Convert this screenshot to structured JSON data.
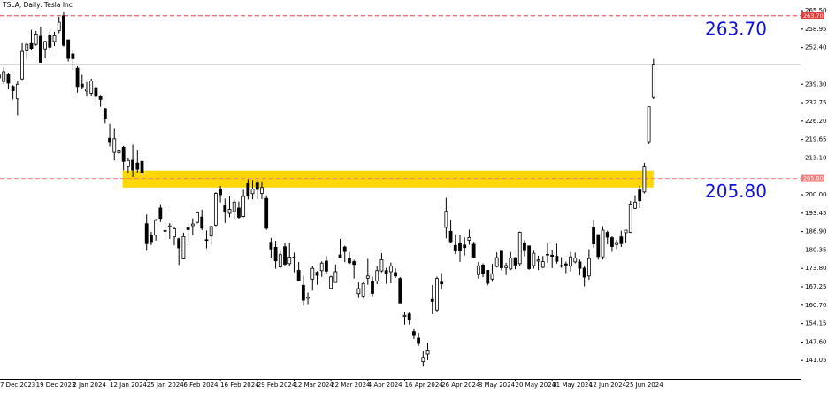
{
  "chart_data": {
    "type": "candlestick",
    "title": "TSLA, Daily:  Tesla Inc",
    "categories": [
      "7 Dec 2023",
      null,
      null,
      null,
      null,
      null,
      null,
      null,
      "19 Dec 2023",
      null,
      null,
      null,
      null,
      null,
      null,
      null,
      "2 Jan 2024",
      null,
      null,
      null,
      null,
      null,
      null,
      null,
      "12 Jan 2024",
      null,
      null,
      null,
      null,
      null,
      null,
      null,
      "25 Jan 2024",
      null,
      null,
      null,
      null,
      null,
      null,
      null,
      "6 Feb 2024",
      null,
      null,
      null,
      null,
      null,
      null,
      null,
      "16 Feb 2024",
      null,
      null,
      null,
      null,
      null,
      null,
      null,
      "29 Feb 2024",
      null,
      null,
      null,
      null,
      null,
      null,
      null,
      "12 Mar 2024",
      null,
      null,
      null,
      null,
      null,
      null,
      null,
      "22 Mar 2024",
      null,
      null,
      null,
      null,
      null,
      null,
      null,
      "4 Apr 2024",
      null,
      null,
      null,
      null,
      null,
      null,
      null,
      "16 Apr 2024",
      null,
      null,
      null,
      null,
      null,
      null,
      null,
      "26 Apr 2024",
      null,
      null,
      null,
      null,
      null,
      null,
      null,
      "8 May 2024",
      null,
      null,
      null,
      null,
      null,
      null,
      null,
      "20 May 2024",
      null,
      null,
      null,
      null,
      null,
      null,
      null,
      "31 May 2024",
      null,
      null,
      null,
      null,
      null,
      null,
      null,
      "12 Jun 2024",
      null,
      null,
      null,
      null,
      null,
      null,
      null,
      "25 Jun 2024",
      null,
      null,
      null,
      null,
      null,
      null
    ],
    "ohlc": [
      [
        241.6,
        245.6,
        240.1,
        242.6
      ],
      [
        240.3,
        245.3,
        239.4,
        243.8
      ],
      [
        242.7,
        243.4,
        237.5,
        239.7
      ],
      [
        238.5,
        239.0,
        233.9,
        237.0
      ],
      [
        234.1,
        240.3,
        228.2,
        239.3
      ],
      [
        241.2,
        253.9,
        240.8,
        251.0
      ],
      [
        251.2,
        254.1,
        248.3,
        253.5
      ],
      [
        253.8,
        258.7,
        251.4,
        252.1
      ],
      [
        253.5,
        258.3,
        253.0,
        257.2
      ],
      [
        256.4,
        259.8,
        247.0,
        247.1
      ],
      [
        251.9,
        254.8,
        248.6,
        254.5
      ],
      [
        256.8,
        258.2,
        251.4,
        252.5
      ],
      [
        254.5,
        258.0,
        252.9,
        256.6
      ],
      [
        258.4,
        263.3,
        257.5,
        261.4
      ],
      [
        263.7,
        265.1,
        252.7,
        253.2
      ],
      [
        255.1,
        255.2,
        247.4,
        248.5
      ],
      [
        250.1,
        251.3,
        244.4,
        248.4
      ],
      [
        245.0,
        245.7,
        236.3,
        238.5
      ],
      [
        239.3,
        242.7,
        237.7,
        238.4
      ],
      [
        236.9,
        240.1,
        234.9,
        237.5
      ],
      [
        236.1,
        241.3,
        235.3,
        240.5
      ],
      [
        238.1,
        239.0,
        232.0,
        235.0
      ],
      [
        235.1,
        235.5,
        231.3,
        233.9
      ],
      [
        230.6,
        230.9,
        225.4,
        227.2
      ],
      [
        220.1,
        225.3,
        217.2,
        218.9
      ],
      [
        215.1,
        223.5,
        212.2,
        219.9
      ],
      [
        214.9,
        215.7,
        212.0,
        215.6
      ],
      [
        216.9,
        217.4,
        208.7,
        211.9
      ],
      [
        210.0,
        213.2,
        207.6,
        212.2
      ],
      [
        212.3,
        217.8,
        206.3,
        208.8
      ],
      [
        211.3,
        215.7,
        207.8,
        209.1
      ],
      [
        211.9,
        212.7,
        206.8,
        207.8
      ],
      [
        189.7,
        193.0,
        180.1,
        182.6
      ],
      [
        185.5,
        186.8,
        182.1,
        183.3
      ],
      [
        185.6,
        191.5,
        183.7,
        190.9
      ],
      [
        195.3,
        196.4,
        190.3,
        191.6
      ],
      [
        187.0,
        194.0,
        185.9,
        187.3
      ],
      [
        188.5,
        189.9,
        184.3,
        188.9
      ],
      [
        185.0,
        188.7,
        182.0,
        187.9
      ],
      [
        184.3,
        184.7,
        175.0,
        181.1
      ],
      [
        177.2,
        186.5,
        177.1,
        185.1
      ],
      [
        188.2,
        189.8,
        182.7,
        187.6
      ],
      [
        189.0,
        191.6,
        185.6,
        189.6
      ],
      [
        190.2,
        194.1,
        189.8,
        193.6
      ],
      [
        192.1,
        194.7,
        187.4,
        188.1
      ],
      [
        184.0,
        187.3,
        180.9,
        184.0
      ],
      [
        185.3,
        188.9,
        182.0,
        188.7
      ],
      [
        189.2,
        200.9,
        188.8,
        200.5
      ],
      [
        202.1,
        203.2,
        197.3,
        200.0
      ],
      [
        196.1,
        198.6,
        190.0,
        193.8
      ],
      [
        193.4,
        199.4,
        192.0,
        194.8
      ],
      [
        194.0,
        198.3,
        191.4,
        197.4
      ],
      [
        195.3,
        197.6,
        191.5,
        192.0
      ],
      [
        192.3,
        201.8,
        192.0,
        199.4
      ],
      [
        204.0,
        205.6,
        198.3,
        199.7
      ],
      [
        200.4,
        205.3,
        198.4,
        202.0
      ],
      [
        204.2,
        205.3,
        198.4,
        201.9
      ],
      [
        200.5,
        204.5,
        198.5,
        202.6
      ],
      [
        198.7,
        199.8,
        187.5,
        188.1
      ],
      [
        183.1,
        184.6,
        177.6,
        180.7
      ],
      [
        181.3,
        183.6,
        173.7,
        176.5
      ],
      [
        174.3,
        180.0,
        173.7,
        178.7
      ],
      [
        181.5,
        182.7,
        174.7,
        175.3
      ],
      [
        175.5,
        182.9,
        174.6,
        177.8
      ],
      [
        177.8,
        179.4,
        172.4,
        177.5
      ],
      [
        173.1,
        176.1,
        169.2,
        169.5
      ],
      [
        167.8,
        171.2,
        160.5,
        162.5
      ],
      [
        163.2,
        165.2,
        160.8,
        163.6
      ],
      [
        170.0,
        174.7,
        165.9,
        173.8
      ],
      [
        172.4,
        172.8,
        168.0,
        171.3
      ],
      [
        173.0,
        176.3,
        170.8,
        175.7
      ],
      [
        176.4,
        178.2,
        171.8,
        172.8
      ],
      [
        166.7,
        171.2,
        166.3,
        170.8
      ],
      [
        168.8,
        175.2,
        168.7,
        172.6
      ],
      [
        178.6,
        184.3,
        177.6,
        177.7
      ],
      [
        181.4,
        181.9,
        176.0,
        179.8
      ],
      [
        177.5,
        179.6,
        175.3,
        175.8
      ],
      [
        176.2,
        176.8,
        170.2,
        175.2
      ],
      [
        164.8,
        168.8,
        163.3,
        166.6
      ],
      [
        164.0,
        168.8,
        163.3,
        168.4
      ],
      [
        170.3,
        177.2,
        168.0,
        171.1
      ],
      [
        169.1,
        170.9,
        163.9,
        164.9
      ],
      [
        169.3,
        174.5,
        168.2,
        173.0
      ],
      [
        172.9,
        179.2,
        172.4,
        176.9
      ],
      [
        173.0,
        174.0,
        168.3,
        171.8
      ],
      [
        172.6,
        175.9,
        168.5,
        174.6
      ],
      [
        172.3,
        173.8,
        170.4,
        171.1
      ],
      [
        170.2,
        170.7,
        161.4,
        161.5
      ],
      [
        156.7,
        158.2,
        153.8,
        157.1
      ],
      [
        157.6,
        158.3,
        153.8,
        155.5
      ],
      [
        151.3,
        152.2,
        148.7,
        149.9
      ],
      [
        149.0,
        150.9,
        146.2,
        147.1
      ],
      [
        140.6,
        144.4,
        138.8,
        142.1
      ],
      [
        143.3,
        147.3,
        141.1,
        144.7
      ],
      [
        162.8,
        167.9,
        157.5,
        162.1
      ],
      [
        159.0,
        170.9,
        158.4,
        170.2
      ],
      [
        168.9,
        172.1,
        166.4,
        168.3
      ],
      [
        188.4,
        198.9,
        184.5,
        194.1
      ],
      [
        187.0,
        191.0,
        182.7,
        183.3
      ],
      [
        182.0,
        185.9,
        178.9,
        180.0
      ],
      [
        182.9,
        185.8,
        176.1,
        180.0
      ],
      [
        182.1,
        184.8,
        178.4,
        181.2
      ],
      [
        183.8,
        187.6,
        182.2,
        184.8
      ],
      [
        182.4,
        183.3,
        177.6,
        177.8
      ],
      [
        171.6,
        176.1,
        170.2,
        174.7
      ],
      [
        175.0,
        175.6,
        170.7,
        172.0
      ],
      [
        173.1,
        173.1,
        167.8,
        168.5
      ],
      [
        170.0,
        175.4,
        169.0,
        171.9
      ],
      [
        174.5,
        179.5,
        174.1,
        177.6
      ],
      [
        179.9,
        180.0,
        173.1,
        174.0
      ],
      [
        174.1,
        175.8,
        171.4,
        174.8
      ],
      [
        173.6,
        179.6,
        173.2,
        177.5
      ],
      [
        177.6,
        177.8,
        173.5,
        175.0
      ],
      [
        175.5,
        186.9,
        174.7,
        186.6
      ],
      [
        182.9,
        183.8,
        178.1,
        180.1
      ],
      [
        181.8,
        181.9,
        173.3,
        173.7
      ],
      [
        174.8,
        180.1,
        173.7,
        179.2
      ],
      [
        176.4,
        178.3,
        173.2,
        176.8
      ],
      [
        174.2,
        178.2,
        173.9,
        176.2
      ],
      [
        178.6,
        182.7,
        175.8,
        178.8
      ],
      [
        178.5,
        180.3,
        173.9,
        178.1
      ],
      [
        178.1,
        182.6,
        175.5,
        176.3
      ],
      [
        174.8,
        177.8,
        174.0,
        174.8
      ],
      [
        175.4,
        176.2,
        172.1,
        175.0
      ],
      [
        174.6,
        179.7,
        172.7,
        177.9
      ],
      [
        176.1,
        179.4,
        175.6,
        177.5
      ],
      [
        176.1,
        176.9,
        171.3,
        173.8
      ],
      [
        173.9,
        174.8,
        167.4,
        170.7
      ],
      [
        171.1,
        180.6,
        169.8,
        177.3
      ],
      [
        188.4,
        191.1,
        181.2,
        182.5
      ],
      [
        185.8,
        186.0,
        176.9,
        178.0
      ],
      [
        177.9,
        188.8,
        177.0,
        187.4
      ],
      [
        186.6,
        187.2,
        182.4,
        184.9
      ],
      [
        184.7,
        185.2,
        179.7,
        181.6
      ],
      [
        182.3,
        184.0,
        180.7,
        183.0
      ],
      [
        185.0,
        187.2,
        181.4,
        182.6
      ],
      [
        186.5,
        187.3,
        182.9,
        187.4
      ],
      [
        186.6,
        197.8,
        186.4,
        196.4
      ],
      [
        195.2,
        199.8,
        194.9,
        197.4
      ],
      [
        201.7,
        203.2,
        195.3,
        197.9
      ],
      [
        201.0,
        211.4,
        200.5,
        209.9
      ],
      [
        218.9,
        231.3,
        218.0,
        231.3
      ],
      [
        234.6,
        248.3,
        234.0,
        246.4
      ]
    ],
    "up_color": "#ffffff",
    "down_color": "#000000",
    "outline_color": "#000000",
    "ylim": [
      134.5,
      269.3
    ],
    "yticks": [
      {
        "value": 265.5,
        "label": "265.50"
      },
      {
        "value": 258.95,
        "label": "258.95"
      },
      {
        "value": 252.4,
        "label": "252.40"
      },
      {
        "value": 239.3,
        "label": "239.30"
      },
      {
        "value": 232.75,
        "label": "232.75"
      },
      {
        "value": 226.2,
        "label": "226.20"
      },
      {
        "value": 219.65,
        "label": "219.65"
      },
      {
        "value": 213.1,
        "label": "213.10"
      },
      {
        "value": 200,
        "label": "200.00"
      },
      {
        "value": 193.45,
        "label": "193.45"
      },
      {
        "value": 186.9,
        "label": "186.90"
      },
      {
        "value": 180.35,
        "label": "180.35"
      },
      {
        "value": 173.8,
        "label": "173.80"
      },
      {
        "value": 167.25,
        "label": "167.25"
      },
      {
        "value": 160.7,
        "label": "160.70"
      },
      {
        "value": 154.15,
        "label": "154.15"
      },
      {
        "value": 147.6,
        "label": "147.60"
      },
      {
        "value": 141.05,
        "label": "141.05"
      }
    ],
    "levels": [
      {
        "value": 263.7,
        "label": "263.70",
        "color": "#e03c3c"
      },
      {
        "value": 205.8,
        "label": "205.80",
        "color": "#f08080"
      }
    ],
    "annotation_color": "#1010e0",
    "zone": {
      "low": 202.6,
      "high": 208.6,
      "color": "#ffd700"
    },
    "grid": false
  }
}
